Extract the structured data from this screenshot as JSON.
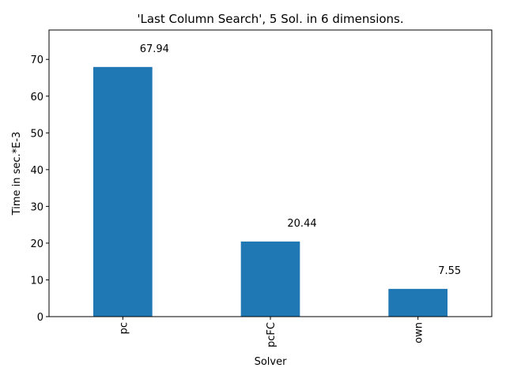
{
  "chart_data": {
    "type": "bar",
    "title": "'Last Column Search', 5 Sol. in 6 dimensions.",
    "xlabel": "Solver",
    "ylabel": "Time in sec.*E-3",
    "categories": [
      "pc",
      "pcFC",
      "own"
    ],
    "values": [
      67.94,
      20.44,
      7.55
    ],
    "data_labels": [
      "67.94",
      "20.44",
      "7.55"
    ],
    "ylim": [
      0,
      78
    ],
    "yticks": [
      0,
      10,
      20,
      30,
      40,
      50,
      60,
      70
    ],
    "grid": false,
    "legend": "none",
    "bar_color": "#1f77b4",
    "x_tick_rotation": "vertical"
  }
}
